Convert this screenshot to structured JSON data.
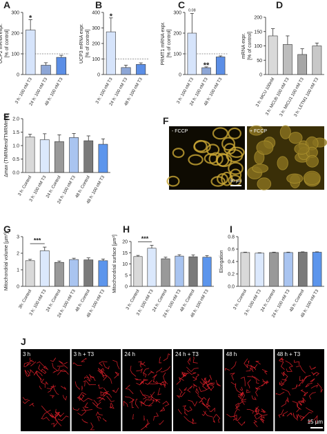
{
  "chart_data": [
    {
      "type": "bar",
      "panel": "A",
      "y_label": "UCP2 mRNA expr.\n[% of control]",
      "categories": [
        "3 h: 100 nM T3",
        "24 h: 100 nM T3",
        "48 h: 100 nM T3"
      ],
      "values": [
        215,
        45,
        83
      ],
      "errors": [
        50,
        12,
        10
      ],
      "colors": [
        "#d6e4fb",
        "#8da6d6",
        "#5b8ee6"
      ],
      "ylim": [
        0,
        300
      ],
      "yticks": [
        0,
        100,
        200,
        300
      ],
      "reference_line": 100,
      "annotations": [
        "*"
      ]
    },
    {
      "type": "bar",
      "panel": "B",
      "y_label": "UCP3 mRNA expr.\n[% of control]",
      "categories": [
        "3 h: 100 nM T3",
        "24 h: 100 nM T3",
        "48 h: 100 nM T3"
      ],
      "values": [
        275,
        45,
        65
      ],
      "errors": [
        90,
        15,
        10
      ],
      "colors": [
        "#d6e4fb",
        "#8da6d6",
        "#5b8ee6"
      ],
      "ylim": [
        0,
        400
      ],
      "yticks": [
        0,
        100,
        200,
        300,
        400
      ],
      "reference_line": 100,
      "annotations": [
        "*"
      ]
    },
    {
      "type": "bar",
      "panel": "C",
      "y_label": "PRMT1 mRNA expr.\n[% of control]",
      "categories": [
        "3 h: 100 nM T3",
        "24 h: 100 nM T3",
        "48 h: 100 nM T3"
      ],
      "values": [
        200,
        33,
        85
      ],
      "errors": [
        95,
        4,
        5
      ],
      "colors": [
        "#d6e4fb",
        "#8da6d6",
        "#5b8ee6"
      ],
      "ylim": [
        0,
        300
      ],
      "yticks": [
        0,
        100,
        200,
        300
      ],
      "reference_line": 100,
      "annotations": [
        "0.08",
        "**"
      ]
    },
    {
      "type": "bar",
      "panel": "D",
      "y_label": "mRNA expr.\n[% of control]",
      "categories": [
        "3 h: MCU 100nM",
        "3 h: MCUb 100 nM T3",
        "3 h: MICU1 100 nM T3",
        "3 h: LETM1 100 nM T3"
      ],
      "values": [
        135,
        105,
        70,
        100
      ],
      "errors": [
        25,
        30,
        20,
        10
      ],
      "colors": [
        "#d9d9d9",
        "#bdbdbd",
        "#a6a6a6",
        "#c8c8c8"
      ],
      "ylim": [
        0,
        200
      ],
      "yticks": [
        0,
        50,
        100,
        150,
        200
      ],
      "annotations": []
    },
    {
      "type": "bar",
      "panel": "E",
      "y_label": "Δmax (TMRMend/TMRMmin)",
      "categories": [
        "3 h: Control",
        "3 h: 100 nM T3",
        "24 h: Control",
        "24 h: 100 nM T3",
        "48 h: Control",
        "48 h: 100 nM T3"
      ],
      "values": [
        1.32,
        1.22,
        1.15,
        1.3,
        1.18,
        1.05
      ],
      "errors": [
        0.1,
        0.22,
        0.25,
        0.15,
        0.18,
        0.2
      ],
      "colors": [
        "#d9d9d9",
        "#dbe8fc",
        "#999999",
        "#a9c4f0",
        "#7a7a7a",
        "#5c95ec"
      ],
      "ylim": [
        0,
        2
      ],
      "yticks": [
        {
          "value": 0,
          "label": "0.0"
        },
        0.5,
        {
          "value": 1,
          "label": "1.0"
        },
        1.5,
        {
          "value": 2,
          "label": "2.0"
        }
      ],
      "annotations": []
    },
    {
      "type": "bar",
      "panel": "G",
      "y_label": "Mitochondrial volume [µm³]",
      "categories": [
        "3h: Control",
        "3 h: 100 nM T3",
        "24 h: Control",
        "24 h: 100 nM T3",
        "48 h: Control",
        "48 h: 100 nM T3"
      ],
      "values": [
        1.55,
        2.15,
        1.45,
        1.62,
        1.6,
        1.55
      ],
      "errors": [
        0.08,
        0.22,
        0.08,
        0.08,
        0.12,
        0.1
      ],
      "colors": [
        "#d9d9d9",
        "#dbe8fc",
        "#999999",
        "#a9c4f0",
        "#7a7a7a",
        "#5c95ec"
      ],
      "ylim": [
        0,
        3
      ],
      "yticks": [
        0,
        1,
        2,
        3
      ],
      "annotations": [
        "***"
      ]
    },
    {
      "type": "bar",
      "panel": "H",
      "y_label": "Mitochondrial surface [µm²]",
      "categories": [
        "3 h: Control",
        "3 h: 100 nM T3",
        "24 h: Control",
        "24 h: 100 nM T3",
        "48 h: Control",
        "48 h: 100 nM T3"
      ],
      "values": [
        13.3,
        17,
        12.3,
        13.5,
        13.2,
        13
      ],
      "errors": [
        0.5,
        1.3,
        0.7,
        0.6,
        0.8,
        0.7
      ],
      "colors": [
        "#d9d9d9",
        "#dbe8fc",
        "#999999",
        "#a9c4f0",
        "#7a7a7a",
        "#5c95ec"
      ],
      "ylim": [
        0,
        20
      ],
      "yticks": [
        0,
        5,
        10,
        15,
        20
      ],
      "annotations": [
        "***"
      ]
    },
    {
      "type": "bar",
      "panel": "I",
      "y_label": "Elongation",
      "categories": [
        "3 h: Control",
        "3 h: 100 nM T3",
        "24 h: Control",
        "24 h: 100 nM T3",
        "48 h: Control",
        "48 h: 100 nM T3"
      ],
      "values": [
        0.545,
        0.535,
        0.545,
        0.545,
        0.55,
        0.55
      ],
      "errors": [
        0.006,
        0.006,
        0.006,
        0.006,
        0.006,
        0.006
      ],
      "colors": [
        "#d9d9d9",
        "#dbe8fc",
        "#999999",
        "#a9c4f0",
        "#7a7a7a",
        "#5c95ec"
      ],
      "ylim": [
        0,
        0.8
      ],
      "yticks": [
        {
          "value": 0,
          "label": "0.0"
        },
        0.2,
        0.4,
        0.6,
        0.8
      ],
      "annotations": []
    }
  ],
  "images": [
    {
      "panel": "F",
      "labels": [
        "- FCCP",
        "+ FCCP"
      ],
      "scale_bar": "50 µm"
    },
    {
      "panel": "J",
      "labels": [
        "3 h",
        "3 h +  T3",
        "24 h",
        "24 h + T3",
        "48 h",
        "48 h + T3"
      ],
      "scale_bar": "15 µm"
    }
  ]
}
